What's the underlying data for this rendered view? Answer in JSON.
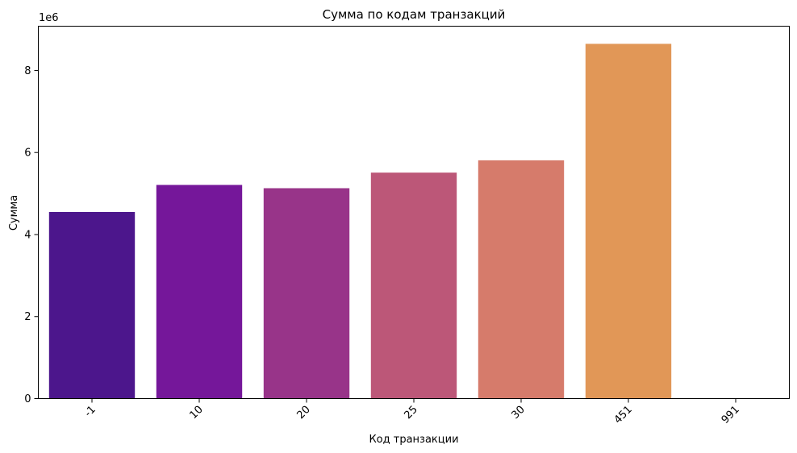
{
  "chart_data": {
    "type": "bar",
    "title": "Сумма по кодам транзакций",
    "xlabel": "Код транзакции",
    "ylabel": "Сумма",
    "offset_label": "1e6",
    "categories": [
      "-1",
      "10",
      "20",
      "25",
      "30",
      "451",
      "991"
    ],
    "values": [
      4550000,
      5210000,
      5130000,
      5510000,
      5810000,
      8650000,
      0
    ],
    "colors": [
      "#4c168c",
      "#75179a",
      "#983489",
      "#bc5778",
      "#d67b6b",
      "#e19757",
      "#f0c13a"
    ],
    "ylim": [
      0,
      9080000
    ],
    "yticks": [
      0,
      2000000,
      4000000,
      6000000,
      8000000
    ],
    "ytick_labels": [
      "0",
      "2",
      "4",
      "6",
      "8"
    ],
    "grid": false,
    "legend": false,
    "xtick_rotation": 45
  }
}
